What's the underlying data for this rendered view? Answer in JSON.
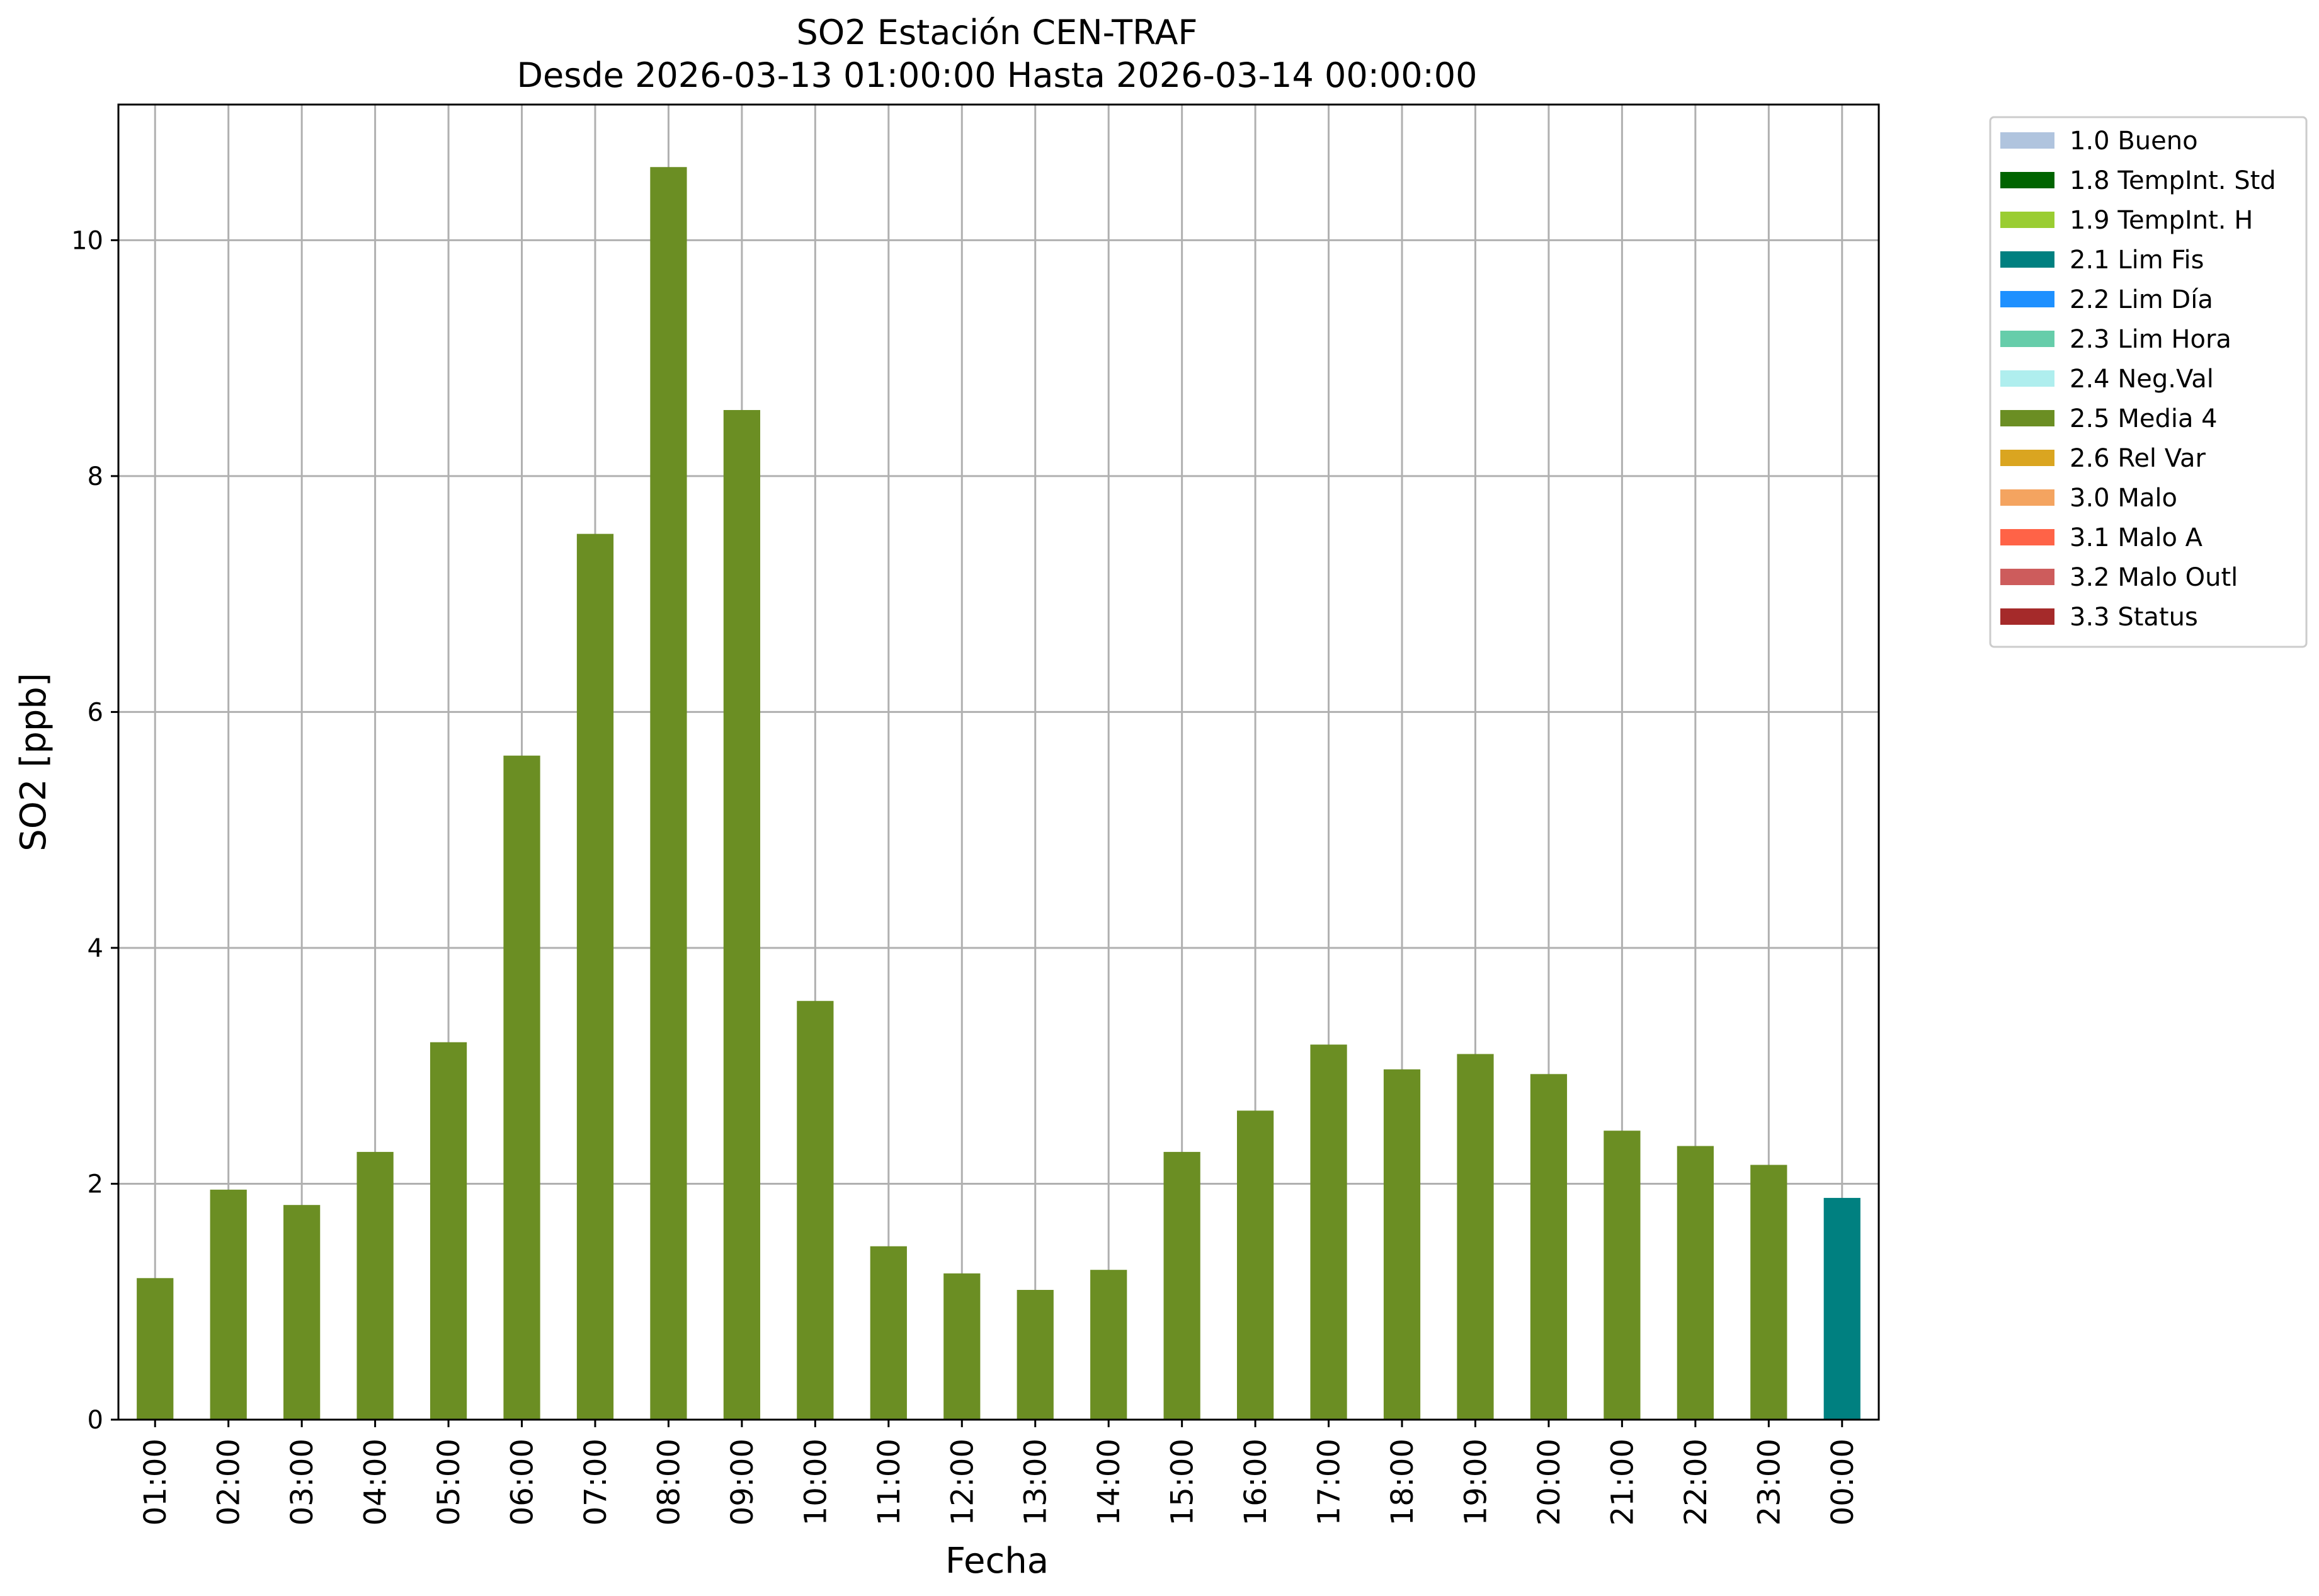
{
  "chart_data": {
    "type": "bar",
    "title": "SO2 Estación CEN-TRAF",
    "subtitle": "Desde 2026-03-13 01:00:00 Hasta 2026-03-14 00:00:00",
    "xlabel": "Fecha",
    "ylabel": "SO2 [ppb]",
    "ylim": [
      0,
      11.15
    ],
    "yticks": [
      0,
      2,
      4,
      6,
      8,
      10
    ],
    "grid": true,
    "legend_position": "outside-top-right",
    "categories": [
      "01:00",
      "02:00",
      "03:00",
      "04:00",
      "05:00",
      "06:00",
      "07:00",
      "08:00",
      "09:00",
      "10:00",
      "11:00",
      "12:00",
      "13:00",
      "14:00",
      "15:00",
      "16:00",
      "17:00",
      "18:00",
      "19:00",
      "20:00",
      "21:00",
      "22:00",
      "23:00",
      "00:00"
    ],
    "values": [
      1.2,
      1.95,
      1.82,
      2.27,
      3.2,
      5.63,
      7.51,
      10.62,
      8.56,
      3.55,
      1.47,
      1.24,
      1.1,
      1.27,
      2.27,
      2.62,
      3.18,
      2.97,
      3.1,
      2.93,
      2.45,
      2.32,
      2.16,
      1.88
    ],
    "bar_flags": [
      "2.5 Media 4",
      "2.5 Media 4",
      "2.5 Media 4",
      "2.5 Media 4",
      "2.5 Media 4",
      "2.5 Media 4",
      "2.5 Media 4",
      "2.5 Media 4",
      "2.5 Media 4",
      "2.5 Media 4",
      "2.5 Media 4",
      "2.5 Media 4",
      "2.5 Media 4",
      "2.5 Media 4",
      "2.5 Media 4",
      "2.5 Media 4",
      "2.5 Media 4",
      "2.5 Media 4",
      "2.5 Media 4",
      "2.5 Media 4",
      "2.5 Media 4",
      "2.5 Media 4",
      "2.5 Media 4",
      "2.1 Lim Fis"
    ],
    "legend": [
      {
        "label": "1.0 Bueno",
        "color": "#b0c4de"
      },
      {
        "label": "1.8 TempInt. Std",
        "color": "#006400"
      },
      {
        "label": "1.9 TempInt. H",
        "color": "#9acd32"
      },
      {
        "label": "2.1 Lim Fis",
        "color": "#008080"
      },
      {
        "label": "2.2 Lim Día",
        "color": "#1e90ff"
      },
      {
        "label": "2.3 Lim Hora",
        "color": "#66cdaa"
      },
      {
        "label": "2.4 Neg.Val",
        "color": "#afeeee"
      },
      {
        "label": "2.5 Media 4",
        "color": "#6b8e23"
      },
      {
        "label": "2.6 Rel Var",
        "color": "#daa520"
      },
      {
        "label": "3.0 Malo",
        "color": "#f4a460"
      },
      {
        "label": "3.1 Malo A",
        "color": "#ff6347"
      },
      {
        "label": "3.2 Malo Outl",
        "color": "#cd5c5c"
      },
      {
        "label": "3.3 Status",
        "color": "#a52a2a"
      }
    ]
  }
}
